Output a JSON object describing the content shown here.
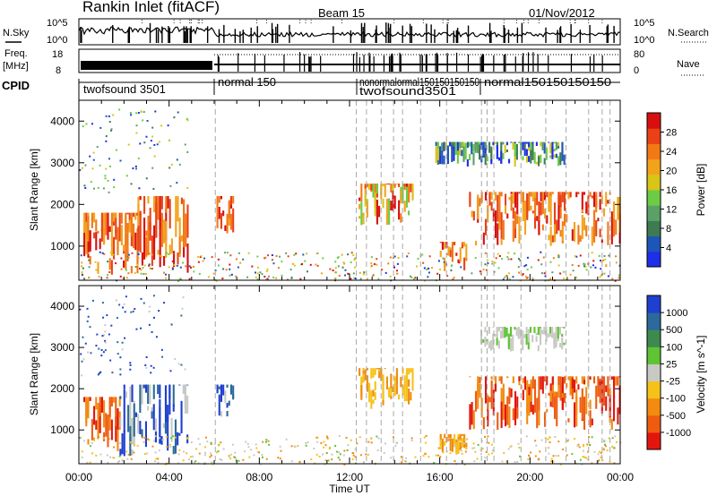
{
  "header": {
    "station": "Rankin Inlet (fitACF)",
    "beam": "Beam 15",
    "date": "01/Nov/2012"
  },
  "nsky_panel": {
    "left_label": "N.Sky",
    "ticks_left": [
      "10^5",
      "10^0"
    ],
    "right_label": "N.Search",
    "ticks_right": [
      "10^5",
      "10^0"
    ]
  },
  "freq_panel": {
    "left_label_line1": "Freq.",
    "left_label_line2": "[MHz]",
    "ticks_left": [
      "18",
      "8"
    ],
    "right_label": "Nave",
    "ticks_right": [
      "80",
      "0"
    ]
  },
  "cpid": {
    "label": "CPID",
    "segments": [
      {
        "text": "twofsound 3501",
        "start_hour": 0
      },
      {
        "text": "normal 150",
        "start_hour": 6
      },
      {
        "text": "nonormalormal150150150150",
        "start_hour": 12.3
      },
      {
        "text": "twofsound3501",
        "start_hour": 12.3
      },
      {
        "text": "normal150150150150",
        "start_hour": 17.8
      }
    ]
  },
  "chart_data": [
    {
      "type": "heatmap",
      "name": "power",
      "ylabel": "Slant Range [km]",
      "ylim": [
        180,
        4500
      ],
      "y_ticks": [
        1000,
        2000,
        3000,
        4000
      ],
      "colorbar": {
        "label": "Power [dB]",
        "ticks": [
          "4",
          "8",
          "12",
          "16",
          "20",
          "24",
          "28"
        ],
        "range": [
          0,
          30
        ],
        "colors": [
          "#1f2ee8",
          "#1e55b8",
          "#3e7a52",
          "#5aa067",
          "#6ccc45",
          "#d8c518",
          "#f2a31c",
          "#f27916",
          "#ea4216",
          "#d90f0f"
        ]
      },
      "regions": [
        {
          "x": [
            0.2,
            2.6
          ],
          "y": [
            300,
            1800
          ],
          "level": "high"
        },
        {
          "x": [
            2.6,
            4.8
          ],
          "y": [
            300,
            2200
          ],
          "level": "high"
        },
        {
          "x": [
            6.1,
            6.8
          ],
          "y": [
            1300,
            2200
          ],
          "level": "high"
        },
        {
          "x": [
            12.4,
            14.8
          ],
          "y": [
            1500,
            2500
          ],
          "level": "mid"
        },
        {
          "x": [
            16.0,
            17.2
          ],
          "y": [
            400,
            1100
          ],
          "level": "high"
        },
        {
          "x": [
            17.3,
            24.0
          ],
          "y": [
            1000,
            2300
          ],
          "level": "high"
        },
        {
          "x": [
            15.8,
            21.5
          ],
          "y": [
            2900,
            3500
          ],
          "level": "low"
        }
      ]
    },
    {
      "type": "heatmap",
      "name": "velocity",
      "ylabel": "Slant Range [km]",
      "ylim": [
        180,
        4500
      ],
      "y_ticks": [
        1000,
        2000,
        3000,
        4000
      ],
      "x_label": "Time UT",
      "x_ticks": [
        "00:00",
        "04:00",
        "08:00",
        "12:00",
        "16:00",
        "20:00",
        "00:00"
      ],
      "xlim_hours": [
        0,
        24
      ],
      "colorbar": {
        "label": "Velocity [m s^-1]",
        "ticks": [
          "1000",
          "500",
          "100",
          "25",
          "-25",
          "-100",
          "-500",
          "-1000"
        ],
        "colors": [
          "#1f3fd0",
          "#2b6a9a",
          "#3e8a4e",
          "#5ec434",
          "#c9c9c4",
          "#f6c21a",
          "#f28b10",
          "#ef5c10",
          "#e3160e"
        ]
      },
      "regions": [
        {
          "x": [
            0.2,
            1.8
          ],
          "y": [
            400,
            1800
          ],
          "level": "away"
        },
        {
          "x": [
            1.8,
            4.8
          ],
          "y": [
            300,
            2100
          ],
          "level": "toward"
        },
        {
          "x": [
            6.1,
            6.8
          ],
          "y": [
            1300,
            2100
          ],
          "level": "toward"
        },
        {
          "x": [
            12.4,
            14.8
          ],
          "y": [
            1500,
            2500
          ],
          "level": "away_small"
        },
        {
          "x": [
            16.0,
            17.2
          ],
          "y": [
            400,
            900
          ],
          "level": "away_small"
        },
        {
          "x": [
            17.3,
            24.0
          ],
          "y": [
            1000,
            2300
          ],
          "level": "away"
        },
        {
          "x": [
            17.8,
            21.5
          ],
          "y": [
            2900,
            3500
          ],
          "level": "zero"
        }
      ]
    }
  ]
}
